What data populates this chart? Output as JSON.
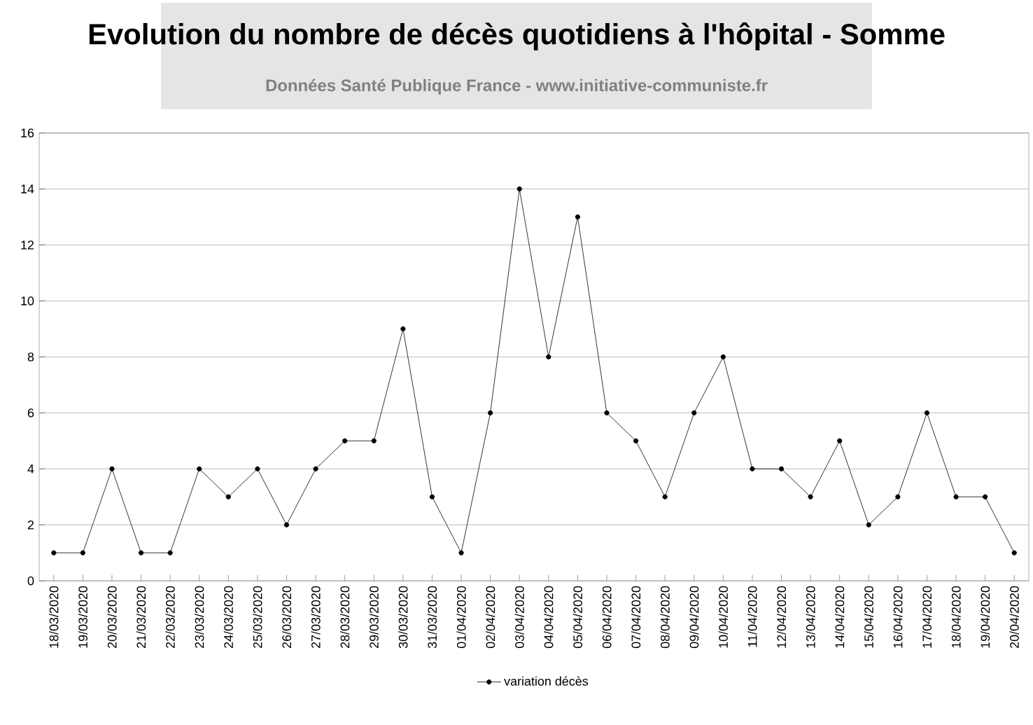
{
  "chart_data": {
    "type": "line",
    "title": "Evolution du nombre de décès quotidiens  à l'hôpital - Somme",
    "subtitle": "Données Santé Publique France - www.initiative-communiste.fr",
    "categories": [
      "18/03/2020",
      "19/03/2020",
      "20/03/2020",
      "21/03/2020",
      "22/03/2020",
      "23/03/2020",
      "24/03/2020",
      "25/03/2020",
      "26/03/2020",
      "27/03/2020",
      "28/03/2020",
      "29/03/2020",
      "30/03/2020",
      "31/03/2020",
      "01/04/2020",
      "02/04/2020",
      "03/04/2020",
      "04/04/2020",
      "05/04/2020",
      "06/04/2020",
      "07/04/2020",
      "08/04/2020",
      "09/04/2020",
      "10/04/2020",
      "11/04/2020",
      "12/04/2020",
      "13/04/2020",
      "14/04/2020",
      "15/04/2020",
      "16/04/2020",
      "17/04/2020",
      "18/04/2020",
      "19/04/2020",
      "20/04/2020"
    ],
    "series": [
      {
        "name": "variation décès",
        "color": "#000000",
        "values": [
          1,
          1,
          4,
          1,
          1,
          4,
          3,
          4,
          2,
          4,
          5,
          5,
          9,
          3,
          1,
          6,
          14,
          8,
          13,
          6,
          5,
          3,
          6,
          8,
          4,
          4,
          3,
          5,
          2,
          3,
          6,
          3,
          3,
          1
        ]
      }
    ],
    "ylim": [
      0,
      16
    ],
    "yticks": [
      0,
      2,
      4,
      6,
      8,
      10,
      12,
      14,
      16
    ],
    "grid": "y",
    "legend": "bottom",
    "marker": "circle",
    "line_style": "solid"
  }
}
